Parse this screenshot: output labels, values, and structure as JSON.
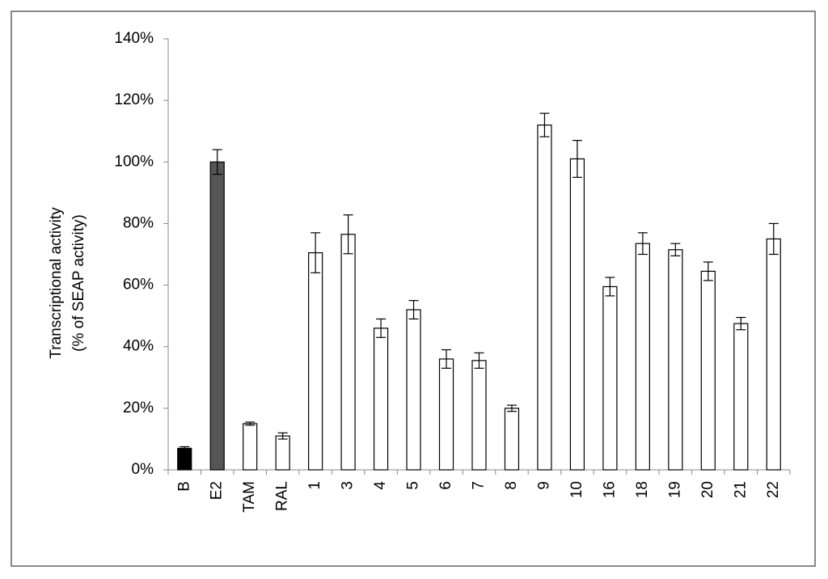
{
  "chart_data": {
    "type": "bar",
    "ylabel": [
      "Transcriptional activity",
      "(% of SEAP activity)"
    ],
    "categories": [
      "B",
      "E2",
      "TAM",
      "RAL",
      "1",
      "3",
      "4",
      "5",
      "6",
      "7",
      "8",
      "9",
      "10",
      "16",
      "18",
      "19",
      "20",
      "21",
      "22"
    ],
    "values": [
      7,
      100,
      15,
      11,
      70.5,
      76.5,
      46,
      52,
      36,
      35.5,
      20,
      112,
      101,
      59.5,
      73.5,
      71.5,
      64.5,
      47.5,
      75
    ],
    "errors": [
      0.5,
      4,
      0.5,
      1,
      6.5,
      6.3,
      3,
      3,
      3,
      2.5,
      1,
      3.8,
      6,
      3,
      3.5,
      2,
      3,
      2,
      5
    ],
    "colors": [
      "#000000",
      "#555555",
      "#ffffff",
      "#ffffff",
      "#ffffff",
      "#ffffff",
      "#ffffff",
      "#ffffff",
      "#ffffff",
      "#ffffff",
      "#ffffff",
      "#ffffff",
      "#ffffff",
      "#ffffff",
      "#ffffff",
      "#ffffff",
      "#ffffff",
      "#ffffff",
      "#ffffff"
    ],
    "ylim": [
      0,
      140
    ],
    "yticks": [
      {
        "value": 0,
        "label": "0%"
      },
      {
        "value": 20,
        "label": "20%"
      },
      {
        "value": 40,
        "label": "40%"
      },
      {
        "value": 60,
        "label": "60%"
      },
      {
        "value": 80,
        "label": "80%"
      },
      {
        "value": 100,
        "label": "100%"
      },
      {
        "value": 120,
        "label": "120%"
      },
      {
        "value": 140,
        "label": "140%"
      }
    ],
    "grid": false
  }
}
